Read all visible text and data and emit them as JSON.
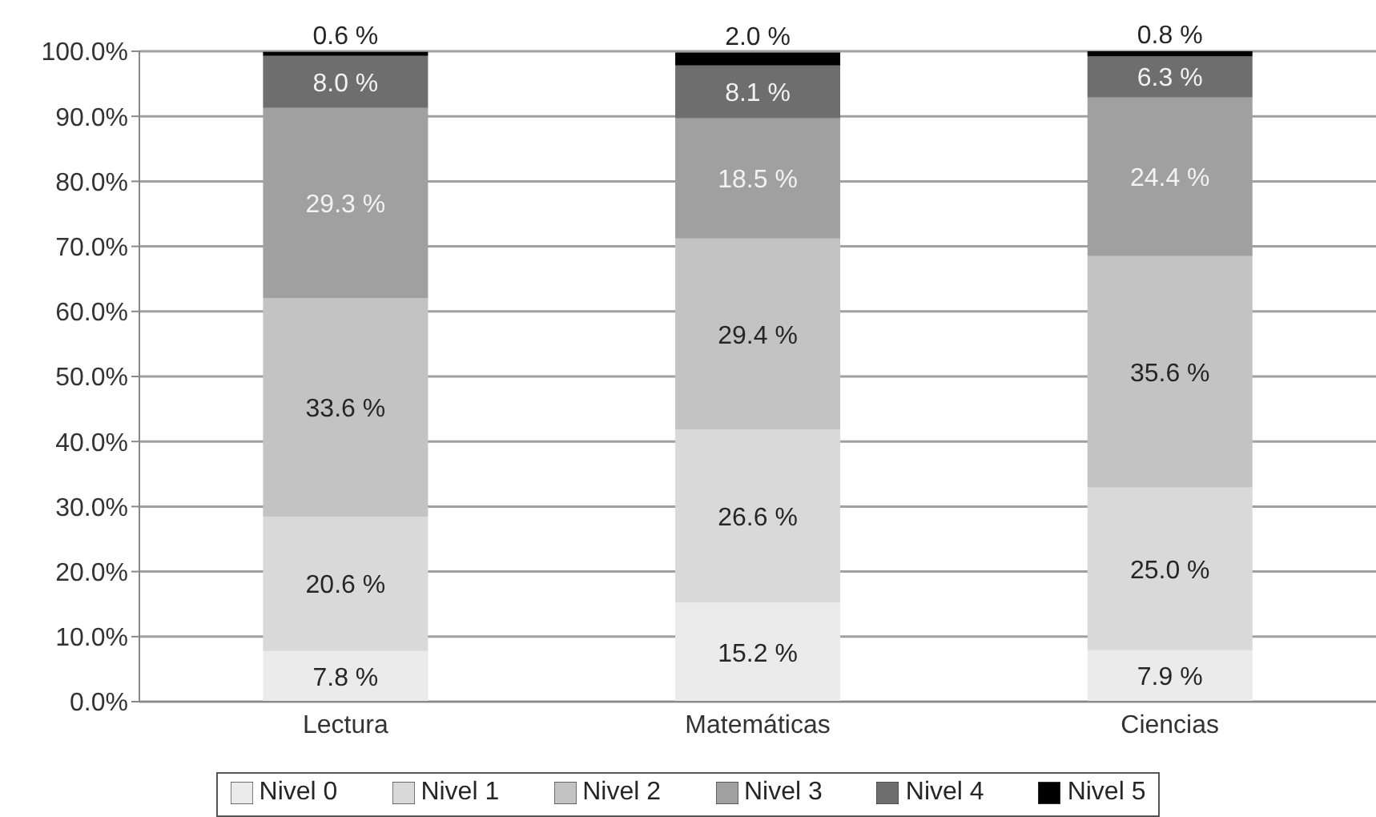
{
  "chart_data": {
    "type": "bar",
    "categories": [
      "Lectura",
      "Matemáticas",
      "Ciencias"
    ],
    "stacked": true,
    "series": [
      {
        "name": "Nivel 0",
        "color": "#ebebeb",
        "values": [
          7.8,
          15.2,
          7.9
        ],
        "value_labels": [
          "7.8 %",
          "15.2 %",
          "7.9 %"
        ]
      },
      {
        "name": "Nivel 1",
        "color": "#d9d9d9",
        "values": [
          20.6,
          26.6,
          25.0
        ],
        "value_labels": [
          "20.6 %",
          "26.6 %",
          "25.0 %"
        ]
      },
      {
        "name": "Nivel 2",
        "color": "#c3c3c3",
        "values": [
          33.6,
          29.4,
          35.6
        ],
        "value_labels": [
          "33.6 %",
          "29.4 %",
          "35.6 %"
        ]
      },
      {
        "name": "Nivel 3",
        "color": "#a0a0a0",
        "values": [
          29.3,
          18.5,
          24.4
        ],
        "value_labels": [
          "29.3 %",
          "18.5 %",
          "24.4 %"
        ]
      },
      {
        "name": "Nivel 4",
        "color": "#6e6e6e",
        "values": [
          8.0,
          8.1,
          6.3
        ],
        "value_labels": [
          "8.0 %",
          "8.1 %",
          "6.3 %"
        ]
      },
      {
        "name": "Nivel 5",
        "color": "#000000",
        "values": [
          0.6,
          2.0,
          0.8
        ],
        "value_labels": [
          "0.6 %",
          "2.0 %",
          "0.8 %"
        ]
      }
    ],
    "ylim": [
      0,
      100
    ],
    "yticks": [
      {
        "value": 0,
        "label": "0.0%"
      },
      {
        "value": 10,
        "label": "10.0%"
      },
      {
        "value": 20,
        "label": "20.0%"
      },
      {
        "value": 30,
        "label": "30.0%"
      },
      {
        "value": 40,
        "label": "40.0%"
      },
      {
        "value": 50,
        "label": "50.0%"
      },
      {
        "value": 60,
        "label": "60.0%"
      },
      {
        "value": 70,
        "label": "70.0%"
      },
      {
        "value": 80,
        "label": "80.0%"
      },
      {
        "value": 90,
        "label": "90.0%"
      },
      {
        "value": 100,
        "label": "100.0%"
      }
    ],
    "grid": "y",
    "legend": "bottom"
  }
}
